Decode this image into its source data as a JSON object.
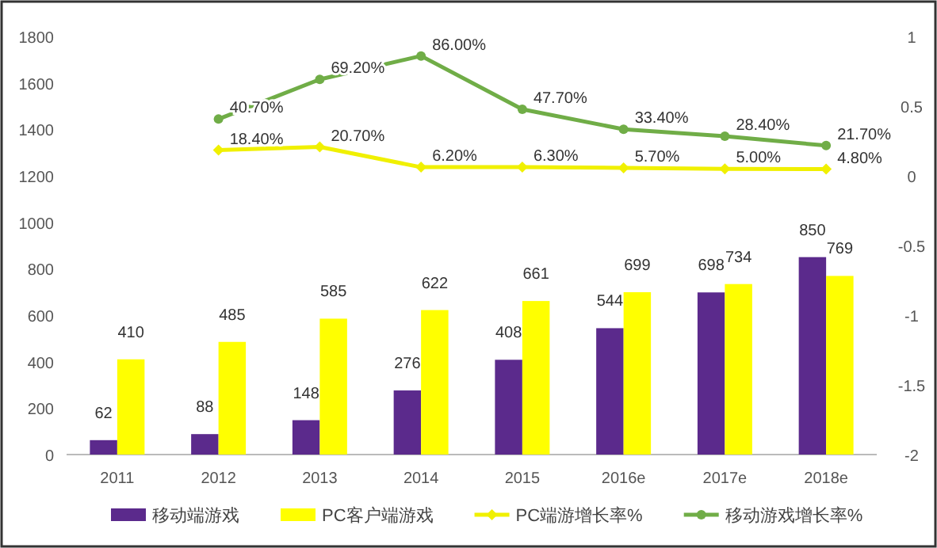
{
  "chart_data": {
    "type": "bar",
    "categories": [
      "2011",
      "2012",
      "2013",
      "2014",
      "2015",
      "2016e",
      "2017e",
      "2018e"
    ],
    "series": [
      {
        "name": "移动端游戏",
        "color": "#5b2a8c",
        "values": [
          62,
          88,
          148,
          276,
          408,
          544,
          698,
          850
        ],
        "value_labels": [
          "62",
          "88",
          "148",
          "276",
          "408",
          "544",
          "698",
          "850"
        ]
      },
      {
        "name": "PC客户端游戏",
        "color": "#ffff00",
        "values": [
          410,
          485,
          585,
          622,
          661,
          699,
          734,
          769
        ],
        "value_labels": [
          "410",
          "485",
          "585",
          "622",
          "661",
          "699",
          "734",
          "769"
        ]
      },
      {
        "name": "PC端游增长率%",
        "type": "line",
        "axis": "y2",
        "marker": "diamond",
        "color": "#f0f000",
        "values": [
          null,
          0.184,
          0.207,
          0.062,
          0.063,
          0.057,
          0.05,
          0.048
        ],
        "value_labels": [
          null,
          "18.40%",
          "20.70%",
          "6.20%",
          "6.30%",
          "5.70%",
          "5.00%",
          "4.80%"
        ]
      },
      {
        "name": "移动游戏增长率%",
        "type": "line",
        "axis": "y2",
        "marker": "circle",
        "color": "#70ad47",
        "values": [
          null,
          0.407,
          0.692,
          0.86,
          0.477,
          0.334,
          0.284,
          0.217
        ],
        "value_labels": [
          null,
          "40.70%",
          "69.20%",
          "86.00%",
          "47.70%",
          "33.40%",
          "28.40%",
          "21.70%"
        ]
      }
    ],
    "ylim": [
      0,
      1800
    ],
    "yticks": [
      0,
      200,
      400,
      600,
      800,
      1000,
      1200,
      1400,
      1600,
      1800
    ],
    "y2lim": [
      -2,
      1
    ],
    "y2ticks": [
      -2,
      -1.5,
      -1,
      -0.5,
      0,
      0.5,
      1
    ],
    "grid": false,
    "legend": "bottom"
  }
}
